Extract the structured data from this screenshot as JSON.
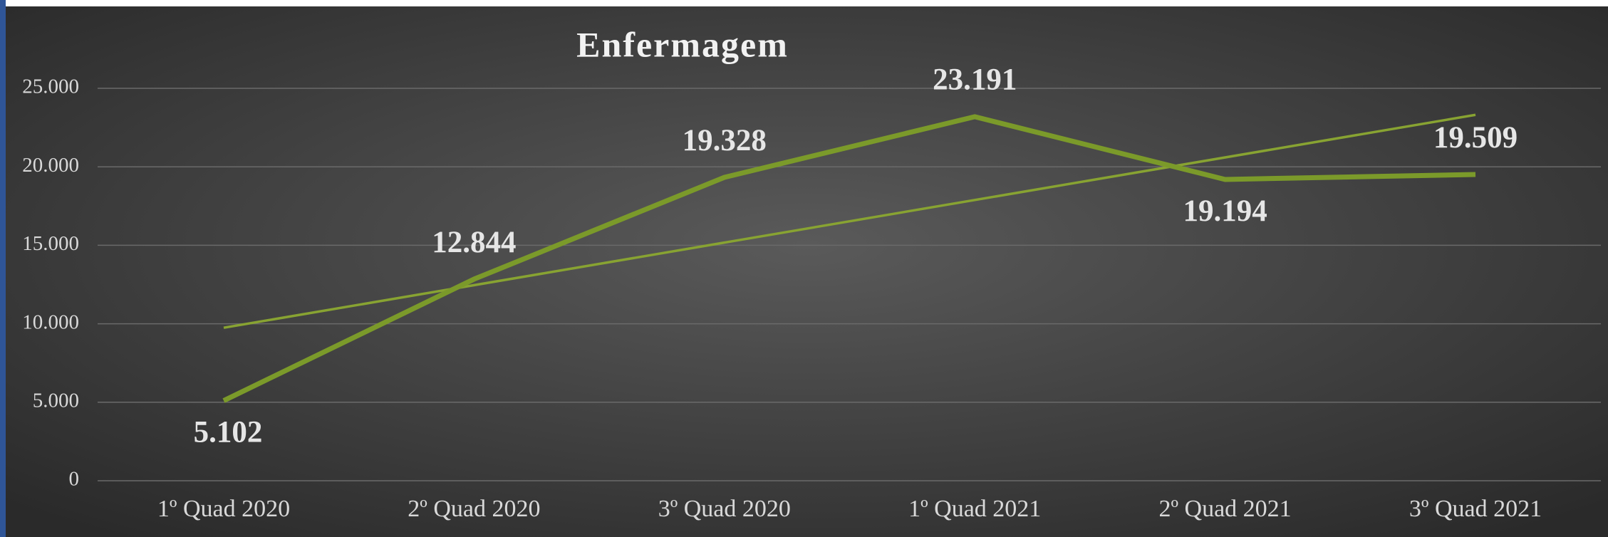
{
  "chart_data": {
    "type": "line",
    "title": "Enfermagem",
    "categories": [
      "1º Quad 2020",
      "2º Quad 2020",
      "3º Quad 2020",
      "1º Quad 2021",
      "2º Quad 2021",
      "3º Quad 2021"
    ],
    "values": [
      5102,
      12844,
      19328,
      23191,
      19194,
      19509
    ],
    "value_labels": [
      "5.102",
      "12.844",
      "19.328",
      "23.191",
      "19.194",
      "19.509"
    ],
    "color": "#7b9a2a",
    "trendline": "linear",
    "ylim": [
      0,
      25000
    ],
    "yticks": [
      0,
      {
        "value": 5000,
        "label": "5.000"
      },
      {
        "value": 10000,
        "label": "10.000"
      },
      {
        "value": 15000,
        "label": "15.000"
      },
      {
        "value": 20000,
        "label": "20.000"
      },
      {
        "value": 25000,
        "label": "25.000"
      }
    ],
    "grid": true
  }
}
